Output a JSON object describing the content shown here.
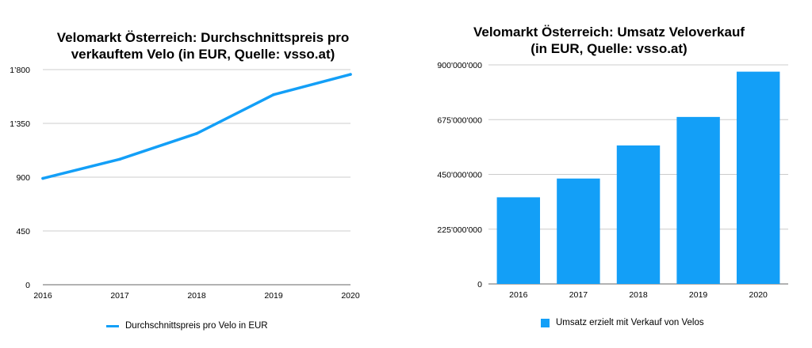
{
  "colors": {
    "series": "#139ff7",
    "grid": "#cccccc",
    "axis": "#666666"
  },
  "chart_data": [
    {
      "type": "line",
      "title_lines": [
        "Velomarkt Österreich: Durchschnittspreis pro",
        "verkauftem Velo (in EUR, Quelle: vsso.at)"
      ],
      "x": [
        "2016",
        "2017",
        "2018",
        "2019",
        "2020"
      ],
      "series": [
        {
          "name": "Durchschnittspreis pro Velo in EUR",
          "values": [
            890,
            1050,
            1265,
            1590,
            1760
          ]
        }
      ],
      "xlabel": "",
      "ylabel": "",
      "ylim": [
        0,
        1800
      ],
      "yticks": [
        0,
        450,
        900,
        1350,
        1800
      ],
      "ytick_labels": [
        "0",
        "450",
        "900",
        "1’350",
        "1’800"
      ],
      "grid": true,
      "legend_position": "bottom"
    },
    {
      "type": "bar",
      "title_lines": [
        "Velomarkt Österreich: Umsatz Veloverkauf",
        "(in EUR, Quelle: vsso.at)"
      ],
      "categories": [
        "2016",
        "2017",
        "2018",
        "2019",
        "2020"
      ],
      "series": [
        {
          "name": "Umsatz erzielt mit Verkauf von Velos",
          "values": [
            356000000,
            433000000,
            569000000,
            686000000,
            872000000
          ]
        }
      ],
      "xlabel": "",
      "ylabel": "",
      "ylim": [
        0,
        900000000
      ],
      "yticks": [
        0,
        225000000,
        450000000,
        675000000,
        900000000
      ],
      "ytick_labels": [
        "0",
        "225'000'000",
        "450'000'000",
        "675'000'000",
        "900'000'000"
      ],
      "grid": true,
      "legend_position": "bottom"
    }
  ]
}
